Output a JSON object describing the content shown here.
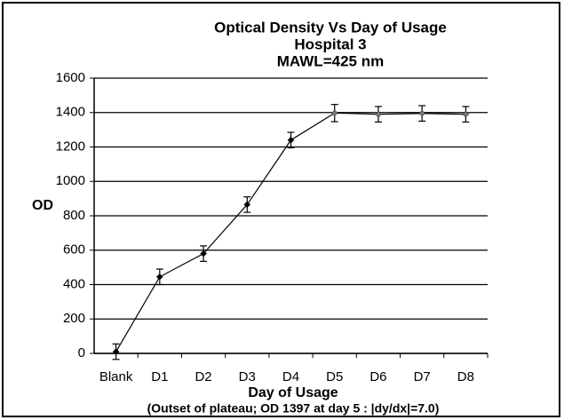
{
  "chart_data": {
    "type": "line",
    "title": [
      "Optical Density Vs Day of Usage",
      "Hospital 3",
      "MAWL=425 nm"
    ],
    "y_label": "OD",
    "x_label": "Day of Usage",
    "annotation": "(Outset of plateau; OD 1397 at day 5 : |dy/dx|=7.0)",
    "categories": [
      "Blank",
      "D1",
      "D2",
      "D3",
      "D4",
      "D5",
      "D6",
      "D7",
      "D8"
    ],
    "values": [
      10,
      445,
      580,
      865,
      1240,
      1397,
      1390,
      1395,
      1390
    ],
    "errors": [
      45,
      45,
      45,
      45,
      45,
      50,
      45,
      45,
      45
    ],
    "color": "#000000",
    "ylim": [
      0,
      1600
    ],
    "yticks": [
      0,
      200,
      400,
      600,
      800,
      1000,
      1200,
      1400,
      1600
    ],
    "grid": true
  }
}
